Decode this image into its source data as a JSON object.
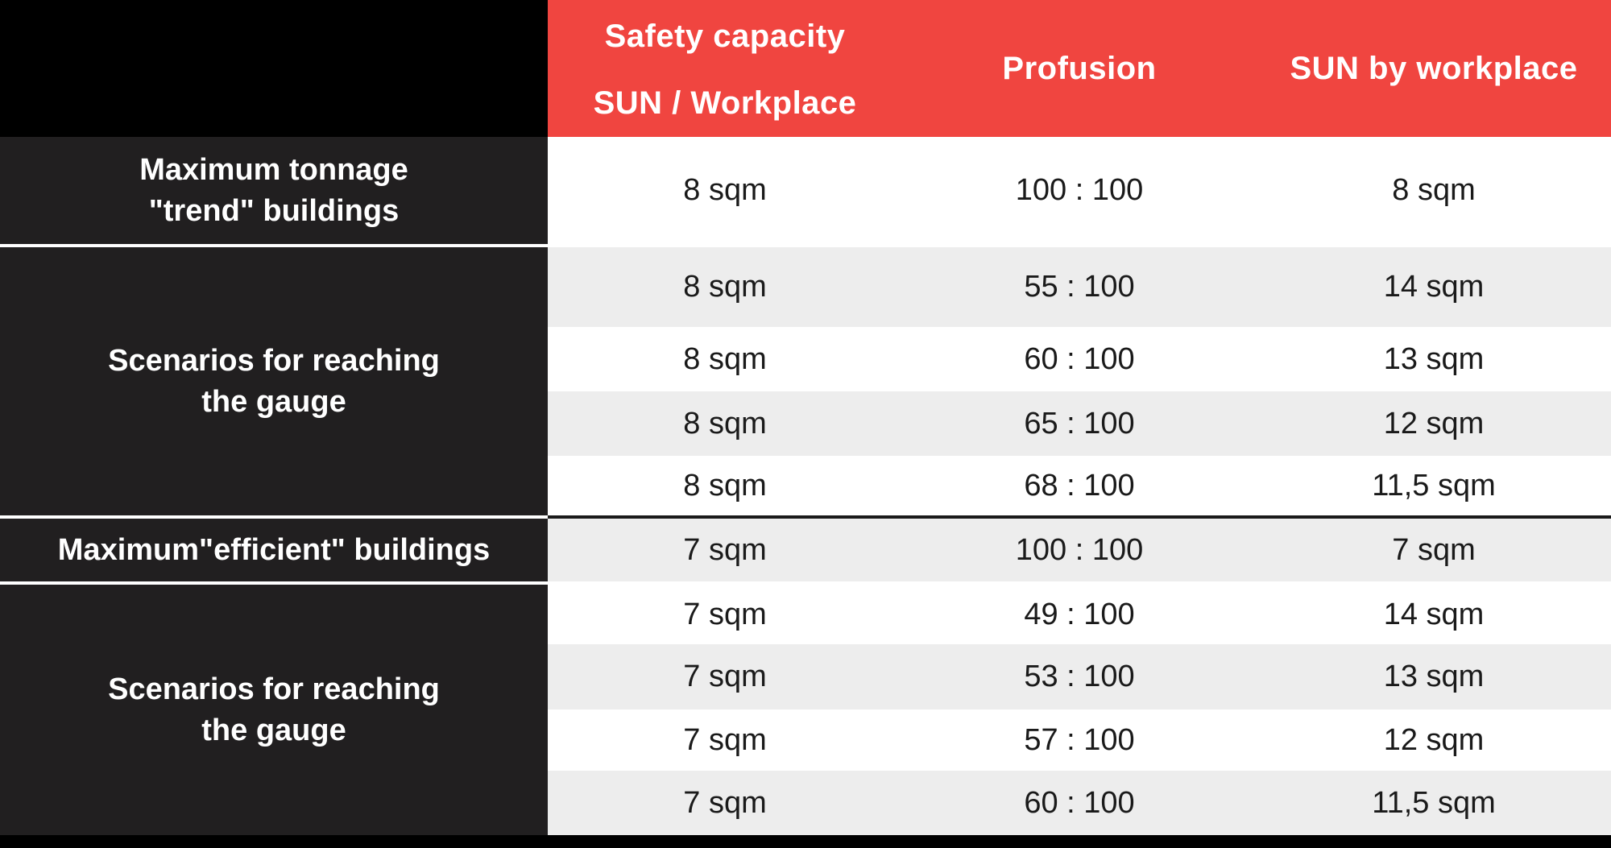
{
  "chart_data": {
    "type": "table",
    "header": {
      "safety_line1": "Safety capacity",
      "safety_line2": "SUN / Workplace",
      "profusion": "Profusion",
      "sun_by_workplace": "SUN by workplace"
    },
    "row_groups": [
      {
        "line1": "Maximum tonnage",
        "line2": "\"trend\" buildings"
      },
      {
        "line1": "Scenarios for reaching",
        "line2": "the gauge"
      },
      {
        "line1": "Maximum\"efficient\" buildings"
      },
      {
        "line1": "Scenarios for reaching",
        "line2": "the gauge"
      }
    ],
    "columns": [
      "Safety capacity SUN / Workplace",
      "Profusion",
      "SUN by workplace"
    ],
    "rows": [
      [
        "8 sqm",
        "100 : 100",
        "8 sqm"
      ],
      [
        "8 sqm",
        "55 : 100",
        "14 sqm"
      ],
      [
        "8 sqm",
        "60 : 100",
        "13 sqm"
      ],
      [
        "8 sqm",
        "65 : 100",
        "12 sqm"
      ],
      [
        "8 sqm",
        "68 : 100",
        "11,5 sqm"
      ],
      [
        "7 sqm",
        "100 : 100",
        "7 sqm"
      ],
      [
        "7 sqm",
        "49 : 100",
        "14 sqm"
      ],
      [
        "7 sqm",
        "53 : 100",
        "13 sqm"
      ],
      [
        "7 sqm",
        "57 : 100",
        "12 sqm"
      ],
      [
        "7 sqm",
        "60 : 100",
        "11,5 sqm"
      ]
    ]
  },
  "colors": {
    "header_red": "#F04540",
    "label_dark": "#211F20",
    "stripe_gray": "#EDEDED",
    "row_white": "#FFFFFF",
    "edge_black": "#000000"
  }
}
